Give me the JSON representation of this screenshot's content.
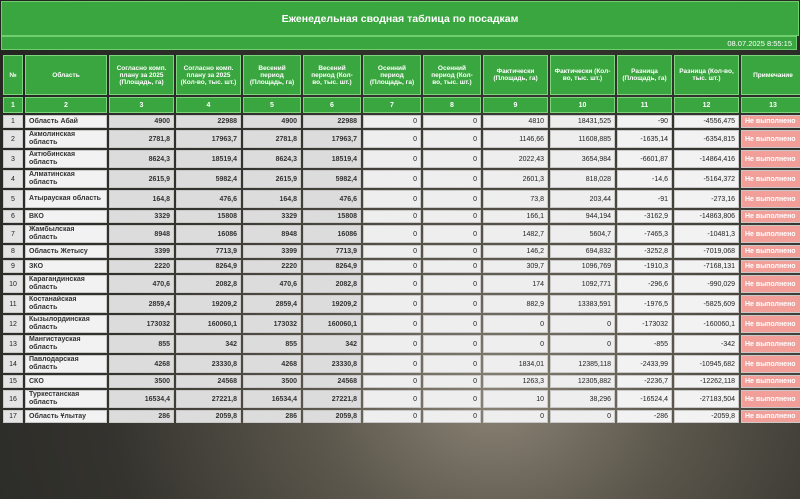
{
  "title": "Еженедельная сводная таблица по посадкам",
  "datetime": "08.07.2025 8:55:15",
  "headers": [
    "№",
    "Область",
    "Согласно комп. плану за 2025 (Площадь, га)",
    "Согласно комп. плану за 2025 (Кол-во, тыс. шт.)",
    "Весений период (Площадь, га)",
    "Весений период (Кол-во, тыс. шт.)",
    "Осенний период (Площадь, га)",
    "Осенний период (Кол-во, тыс. шт.)",
    "Фактически (Площадь, га)",
    "Фактически (Кол-во, тыс. шт.)",
    "Разница (Площадь, га)",
    "Разница (Кол-во, тыс. шт.)",
    "Примечание"
  ],
  "col_numbers": [
    "1",
    "2",
    "3",
    "4",
    "5",
    "6",
    "7",
    "8",
    "9",
    "10",
    "11",
    "12",
    "13"
  ],
  "rows": [
    [
      "1",
      "Область Абай",
      "4900",
      "22988",
      "4900",
      "22988",
      "0",
      "0",
      "4810",
      "18431,525",
      "-90",
      "-4556,475",
      "Не выполнено"
    ],
    [
      "2",
      "Акмолинская область",
      "2781,8",
      "17963,7",
      "2781,8",
      "17963,7",
      "0",
      "0",
      "1146,66",
      "11608,885",
      "-1635,14",
      "-6354,815",
      "Не выполнено"
    ],
    [
      "3",
      "Актюбинская область",
      "8624,3",
      "18519,4",
      "8624,3",
      "18519,4",
      "0",
      "0",
      "2022,43",
      "3654,984",
      "-6601,87",
      "-14864,416",
      "Не выполнено"
    ],
    [
      "4",
      "Алматинская область",
      "2615,9",
      "5982,4",
      "2615,9",
      "5982,4",
      "0",
      "0",
      "2601,3",
      "818,028",
      "-14,6",
      "-5164,372",
      "Не выполнено"
    ],
    [
      "5",
      "Атырауская область",
      "164,8",
      "476,6",
      "164,8",
      "476,6",
      "0",
      "0",
      "73,8",
      "203,44",
      "-91",
      "-273,16",
      "Не выполнено"
    ],
    [
      "6",
      "ВКО",
      "3329",
      "15808",
      "3329",
      "15808",
      "0",
      "0",
      "166,1",
      "944,194",
      "-3162,9",
      "-14863,806",
      "Не выполнено"
    ],
    [
      "7",
      "Жамбылская область",
      "8948",
      "16086",
      "8948",
      "16086",
      "0",
      "0",
      "1482,7",
      "5604,7",
      "-7465,3",
      "-10481,3",
      "Не выполнено"
    ],
    [
      "8",
      "Область Жетысу",
      "3399",
      "7713,9",
      "3399",
      "7713,9",
      "0",
      "0",
      "146,2",
      "694,832",
      "-3252,8",
      "-7019,068",
      "Не выполнено"
    ],
    [
      "9",
      "ЗКО",
      "2220",
      "8264,9",
      "2220",
      "8264,9",
      "0",
      "0",
      "309,7",
      "1096,769",
      "-1910,3",
      "-7168,131",
      "Не выполнено"
    ],
    [
      "10",
      "Карагандинская область",
      "470,6",
      "2082,8",
      "470,6",
      "2082,8",
      "0",
      "0",
      "174",
      "1092,771",
      "-296,6",
      "-990,029",
      "Не выполнено"
    ],
    [
      "11",
      "Костанайская область",
      "2859,4",
      "19209,2",
      "2859,4",
      "19209,2",
      "0",
      "0",
      "882,9",
      "13383,591",
      "-1976,5",
      "-5825,609",
      "Не выполнено"
    ],
    [
      "12",
      "Кызылординская область",
      "173032",
      "160060,1",
      "173032",
      "160060,1",
      "0",
      "0",
      "0",
      "0",
      "-173032",
      "-160060,1",
      "Не выполнено"
    ],
    [
      "13",
      "Мангистауская область",
      "855",
      "342",
      "855",
      "342",
      "0",
      "0",
      "0",
      "0",
      "-855",
      "-342",
      "Не выполнено"
    ],
    [
      "14",
      "Павлодарская область",
      "4268",
      "23330,8",
      "4268",
      "23330,8",
      "0",
      "0",
      "1834,01",
      "12385,118",
      "-2433,99",
      "-10945,682",
      "Не выполнено"
    ],
    [
      "15",
      "СКО",
      "3500",
      "24568",
      "3500",
      "24568",
      "0",
      "0",
      "1263,3",
      "12305,882",
      "-2236,7",
      "-12262,118",
      "Не выполнено"
    ],
    [
      "16",
      "Туркестанская область",
      "16534,4",
      "27221,8",
      "16534,4",
      "27221,8",
      "0",
      "0",
      "10",
      "38,296",
      "-16524,4",
      "-27183,504",
      "Не выполнено"
    ],
    [
      "17",
      "Область Ұлытау",
      "286",
      "2059,8",
      "286",
      "2059,8",
      "0",
      "0",
      "0",
      "0",
      "-286",
      "-2059,8",
      "Не выполнено"
    ]
  ],
  "colors": {
    "header_green": "#3aa63f",
    "note_red": "#f29f9a"
  }
}
